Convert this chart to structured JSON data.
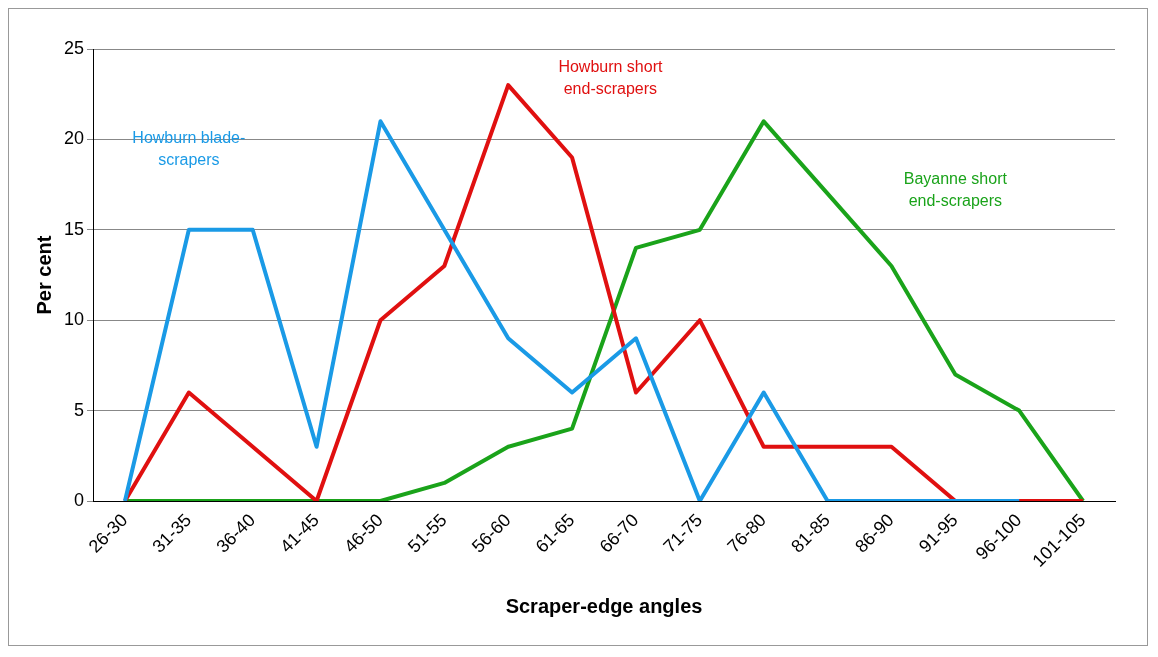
{
  "chart_data": {
    "type": "line",
    "xlabel": "Scraper-edge angles",
    "ylabel": "Per cent",
    "categories": [
      "26-30",
      "31-35",
      "36-40",
      "41-45",
      "46-50",
      "51-55",
      "56-60",
      "61-65",
      "66-70",
      "71-75",
      "76-80",
      "81-85",
      "86-90",
      "91-95",
      "96-100",
      "101-105"
    ],
    "series": [
      {
        "name": "Howburn blade-scrapers",
        "color": "#1a9ae6",
        "values": [
          0,
          15,
          15,
          3,
          21,
          15,
          9,
          6,
          9,
          0,
          6,
          0,
          0,
          0,
          0,
          null
        ]
      },
      {
        "name": "Howburn short end-scrapers",
        "color": "#e01010",
        "values": [
          0,
          6,
          3,
          0,
          10,
          13,
          23,
          19,
          6,
          10,
          3,
          3,
          3,
          0,
          0,
          0
        ]
      },
      {
        "name": "Bayanne short end-scrapers",
        "color": "#1aa31a",
        "values": [
          0,
          0,
          0,
          0,
          0,
          1,
          3,
          4,
          14,
          15,
          21,
          17,
          13,
          7,
          5,
          0
        ]
      }
    ],
    "ylim": [
      0,
      25
    ],
    "yticks": [
      0,
      5,
      10,
      15,
      20,
      25
    ],
    "grid": "y",
    "legend": false,
    "marker": "none",
    "line_style": "solid"
  }
}
